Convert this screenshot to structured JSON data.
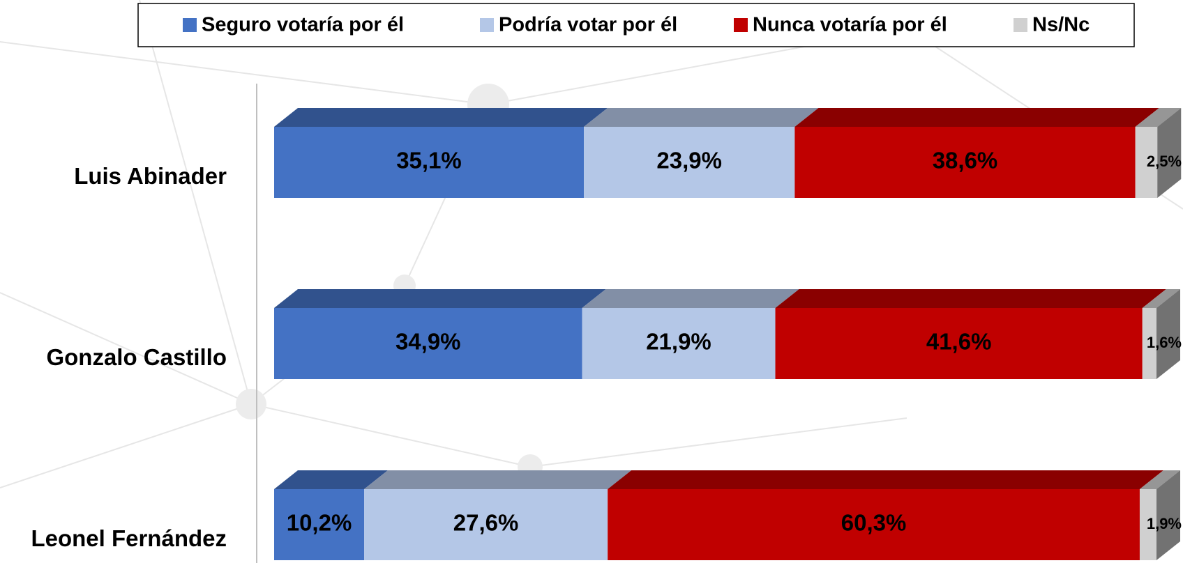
{
  "chart_data": {
    "type": "stacked_bar_horizontal",
    "categories": [
      "Luis Abinader",
      "Gonzalo Castillo",
      "Leonel Fernández"
    ],
    "series": [
      {
        "name": "Seguro votaría por él",
        "color": "#4472c4",
        "values": [
          35.1,
          34.9,
          10.2
        ],
        "value_labels": [
          "35,1%",
          "34,9%",
          "10,2%"
        ]
      },
      {
        "name": "Podría votar por él",
        "color": "#b4c7e7",
        "values": [
          23.9,
          21.9,
          27.6
        ],
        "value_labels": [
          "23,9%",
          "21,9%",
          "27,6%"
        ]
      },
      {
        "name": "Nunca votaría por él",
        "color": "#c00000",
        "values": [
          38.6,
          41.6,
          60.3
        ],
        "value_labels": [
          "38,6%",
          "41,6%",
          "60,3%"
        ]
      },
      {
        "name": "Ns/Nc",
        "color": "#d0d0d0",
        "values": [
          2.5,
          1.6,
          1.9
        ],
        "value_labels": [
          "2,5%",
          "1,6%",
          "1,9%"
        ]
      }
    ],
    "xlim": [
      0,
      100
    ],
    "legend": "top"
  }
}
